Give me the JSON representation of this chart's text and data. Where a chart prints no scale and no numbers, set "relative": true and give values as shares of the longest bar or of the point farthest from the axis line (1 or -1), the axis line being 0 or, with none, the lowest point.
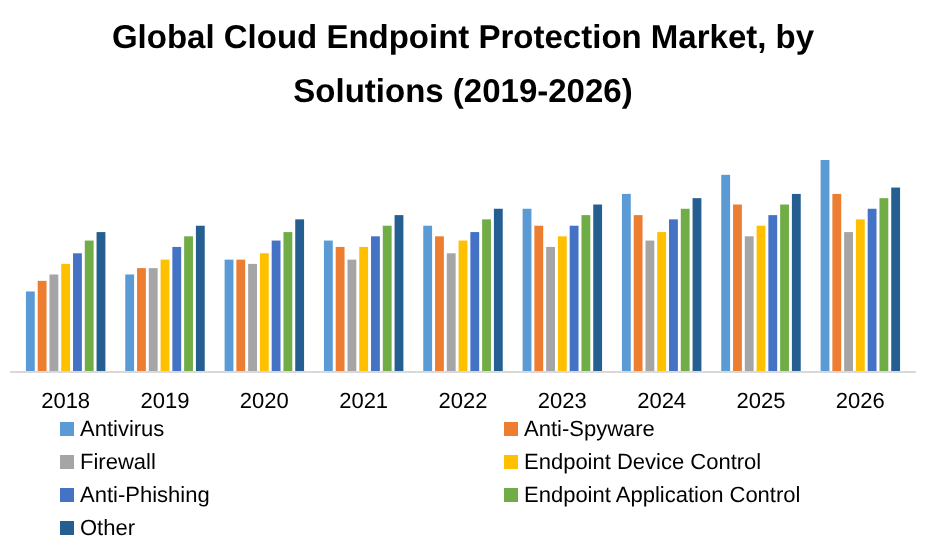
{
  "chart_data": {
    "type": "bar",
    "title": "Global Cloud Endpoint Protection Market, by Solutions (2019-2026)",
    "relative": true,
    "legend": "bottom",
    "categories": [
      "2018",
      "2019",
      "2020",
      "2021",
      "2022",
      "2023",
      "2024",
      "2025",
      "2026"
    ],
    "series": [
      {
        "name": "Antivirus",
        "color": "#5b9bd5",
        "values": [
          0.38,
          0.46,
          0.53,
          0.62,
          0.69,
          0.77,
          0.84,
          0.93,
          1
        ]
      },
      {
        "name": "Anti-Spyware",
        "color": "#ed7d31",
        "values": [
          0.43,
          0.49,
          0.53,
          0.59,
          0.64,
          0.69,
          0.74,
          0.79,
          0.84
        ]
      },
      {
        "name": "Firewall",
        "color": "#a5a5a5",
        "values": [
          0.46,
          0.49,
          0.51,
          0.53,
          0.56,
          0.59,
          0.62,
          0.64,
          0.66
        ]
      },
      {
        "name": "Endpoint Device Control",
        "color": "#ffc000",
        "values": [
          0.51,
          0.53,
          0.56,
          0.59,
          0.62,
          0.64,
          0.66,
          0.69,
          0.72
        ]
      },
      {
        "name": "Anti-Phishing",
        "color": "#4472c4",
        "values": [
          0.56,
          0.59,
          0.62,
          0.64,
          0.66,
          0.69,
          0.72,
          0.74,
          0.77
        ]
      },
      {
        "name": "Endpoint Application Control",
        "color": "#70ad47",
        "values": [
          0.62,
          0.64,
          0.66,
          0.69,
          0.72,
          0.74,
          0.77,
          0.79,
          0.82
        ]
      },
      {
        "name": "Other",
        "color": "#255e91",
        "values": [
          0.66,
          0.69,
          0.72,
          0.74,
          0.77,
          0.79,
          0.82,
          0.84,
          0.87
        ]
      }
    ]
  }
}
